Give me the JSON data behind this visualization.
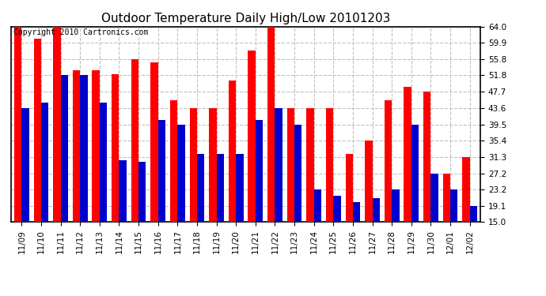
{
  "title": "Outdoor Temperature Daily High/Low 20101203",
  "copyright": "Copyright 2010 Cartronics.com",
  "dates": [
    "11/09",
    "11/10",
    "11/11",
    "11/12",
    "11/13",
    "11/14",
    "11/15",
    "11/16",
    "11/17",
    "11/18",
    "11/19",
    "11/20",
    "11/21",
    "11/22",
    "11/23",
    "11/24",
    "11/25",
    "11/26",
    "11/27",
    "11/28",
    "11/29",
    "11/30",
    "12/01",
    "12/02"
  ],
  "highs": [
    64.0,
    61.0,
    64.0,
    53.0,
    53.0,
    52.0,
    55.8,
    55.0,
    45.5,
    43.6,
    43.6,
    50.5,
    58.0,
    64.0,
    43.6,
    43.6,
    43.6,
    32.0,
    35.4,
    45.5,
    49.0,
    47.7,
    27.2,
    31.3
  ],
  "lows": [
    43.6,
    45.0,
    51.8,
    51.8,
    45.0,
    30.5,
    30.0,
    40.5,
    39.5,
    32.0,
    32.0,
    32.0,
    40.5,
    43.6,
    39.5,
    23.2,
    21.5,
    20.0,
    21.0,
    23.2,
    39.5,
    27.2,
    23.2,
    19.1
  ],
  "yticks": [
    15.0,
    19.1,
    23.2,
    27.2,
    31.3,
    35.4,
    39.5,
    43.6,
    47.7,
    51.8,
    55.8,
    59.9,
    64.0
  ],
  "ymin": 15.0,
  "ymax": 64.0,
  "high_color": "#ff0000",
  "low_color": "#0000cc",
  "bg_color": "#ffffff",
  "grid_color": "#c0c0c0",
  "title_fontsize": 11,
  "tick_fontsize": 7.5,
  "copyright_fontsize": 7
}
